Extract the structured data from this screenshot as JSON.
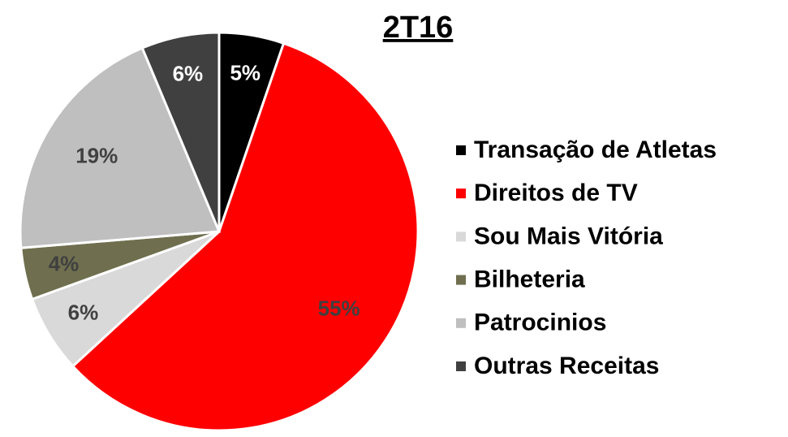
{
  "chart_data": {
    "type": "pie",
    "title": "2T16",
    "categories": [
      "Transação de Atletas",
      "Direitos de TV",
      "Sou Mais Vitória",
      "Bilheteria",
      "Patrocinios",
      "Outras Receitas"
    ],
    "values": [
      5,
      55,
      6,
      4,
      19,
      6
    ],
    "value_labels": [
      "5%",
      "55%",
      "6%",
      "4%",
      "19%",
      "6%"
    ],
    "colors": [
      "#000000",
      "#ff0000",
      "#d9d9d9",
      "#6f6f4f",
      "#bfbfbf",
      "#404040"
    ],
    "legend": "right"
  }
}
